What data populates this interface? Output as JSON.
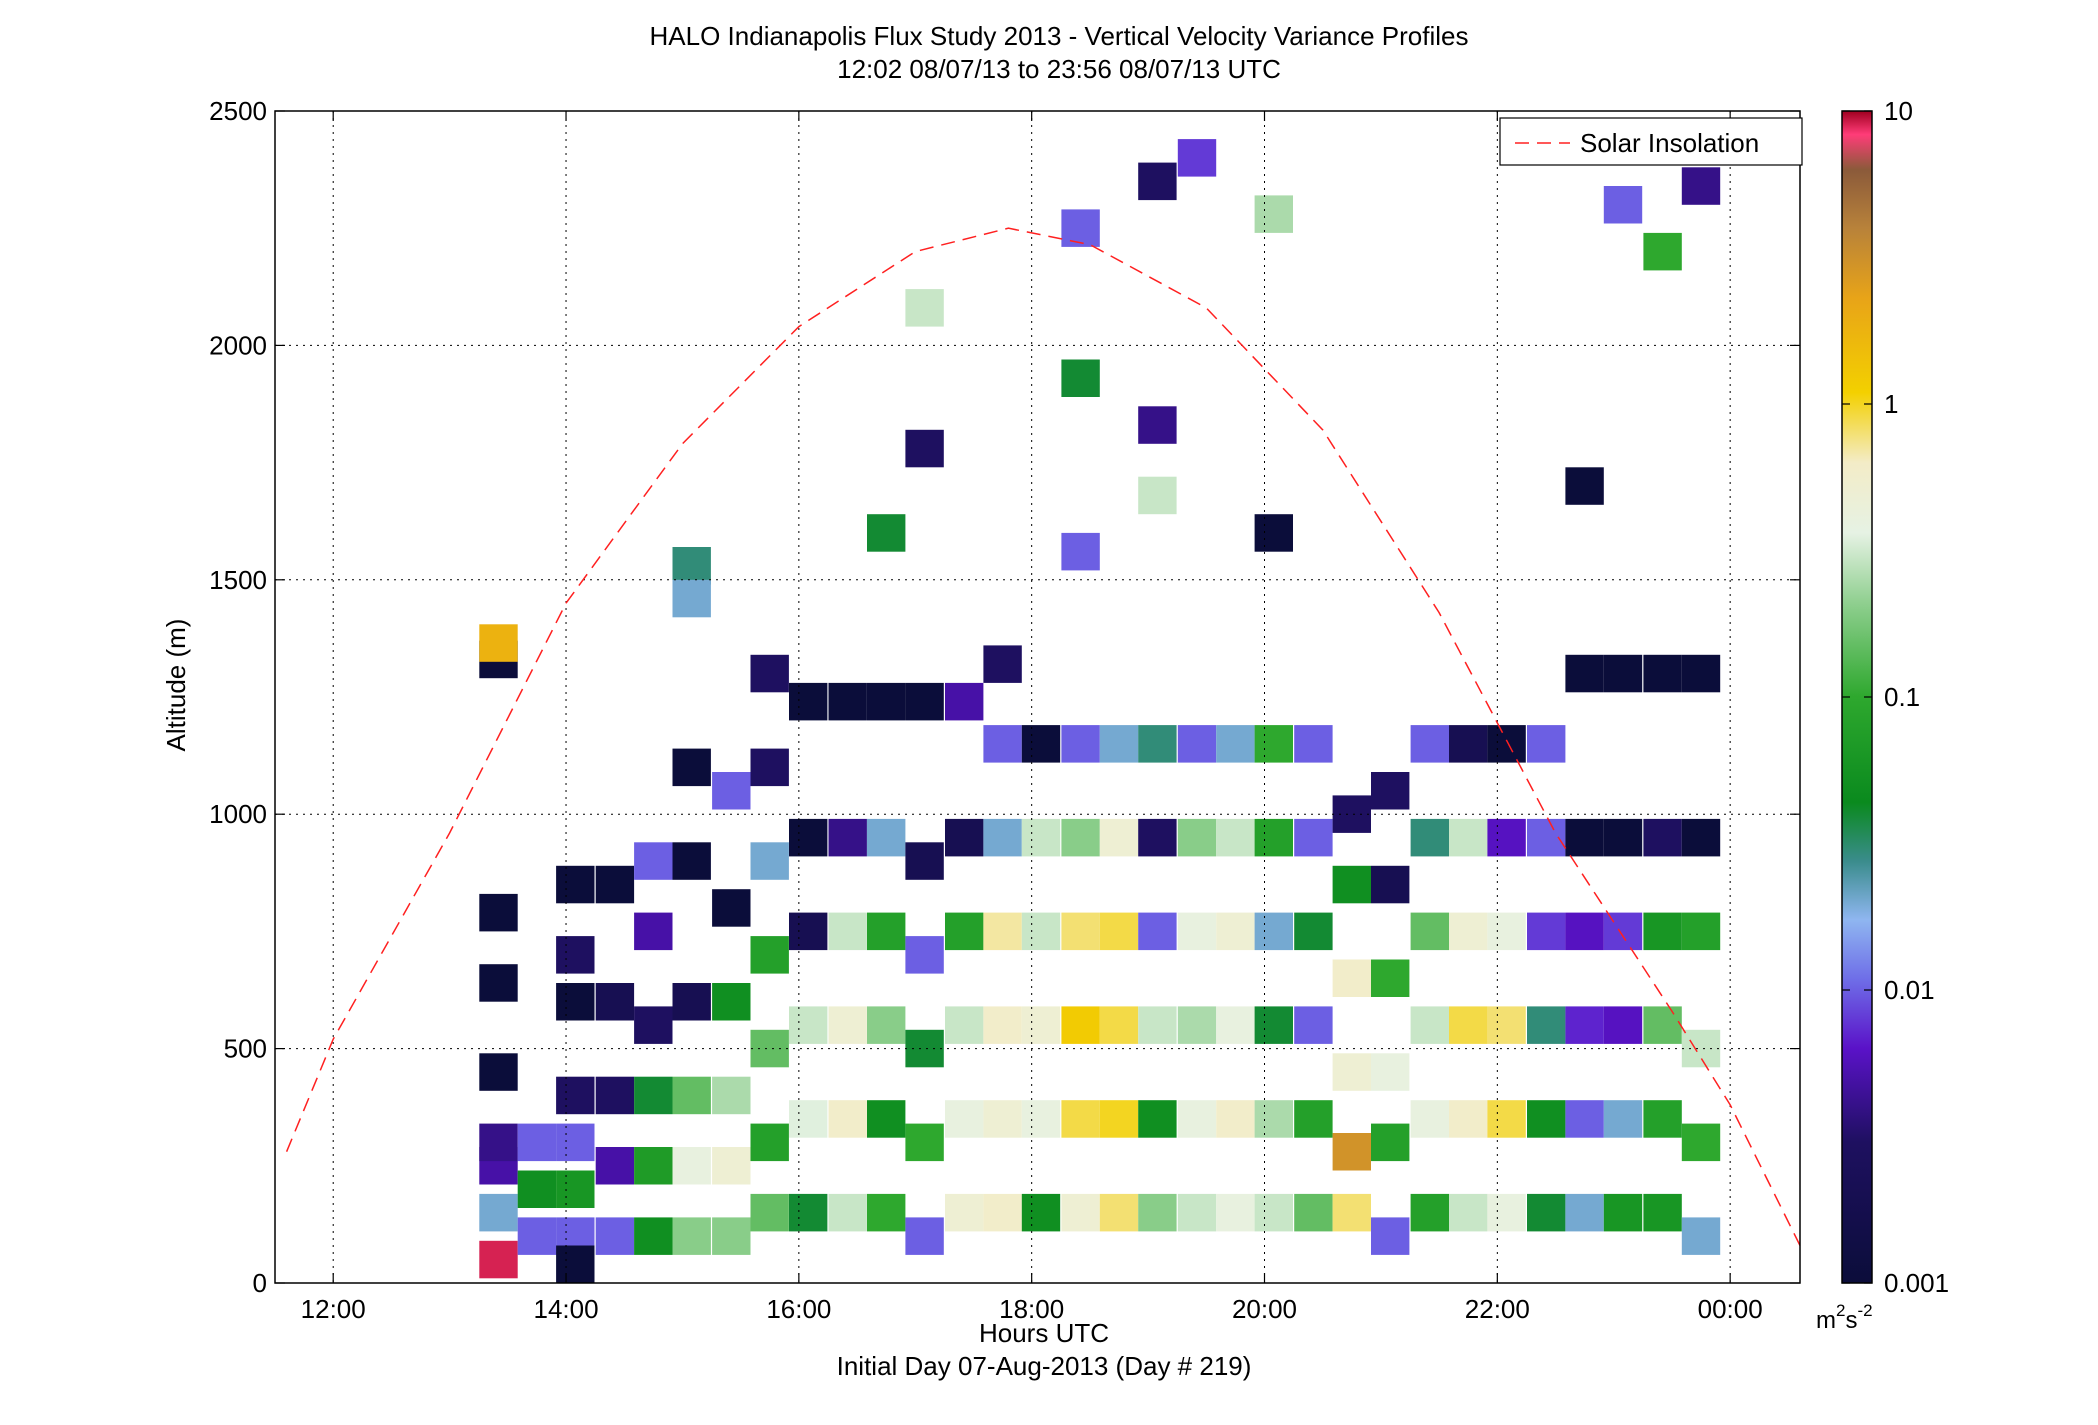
{
  "chart_data": {
    "type": "heatmap",
    "title": "HALO Indianapolis Flux Study 2013 - Vertical Velocity Variance Profiles",
    "subtitle": "12:02 08/07/13 to 23:56 08/07/13  UTC",
    "xlabel": "Hours UTC",
    "footer": "Initial Day 07-Aug-2013 (Day # 219)",
    "ylabel": "Altitude (m)",
    "xlim": [
      11.5,
      24.6
    ],
    "ylim": [
      0,
      2500
    ],
    "x_ticks": [
      12,
      14,
      16,
      18,
      20,
      22,
      24
    ],
    "x_tick_labels": [
      "12:00",
      "14:00",
      "16:00",
      "18:00",
      "20:00",
      "22:00",
      "00:00"
    ],
    "y_ticks": [
      0,
      500,
      1000,
      1500,
      2000,
      2500
    ],
    "y_tick_labels": [
      "0",
      "500",
      "1000",
      "1500",
      "2000",
      "2500"
    ],
    "grid": true,
    "legend": {
      "placement": "top-right",
      "entries": [
        "Solar Insolation"
      ]
    },
    "colorbar": {
      "scale": "log",
      "range": [
        0.001,
        10
      ],
      "ticks": [
        0.001,
        0.01,
        0.1,
        1,
        10
      ],
      "tick_labels": [
        "0.001",
        "0.01",
        "0.1",
        "1",
        "10"
      ],
      "units_base": "m",
      "units_sup": "2",
      "units_mid": "s",
      "units_sup2": "-2",
      "colormap": [
        [
          0.0,
          "#0b0d3a"
        ],
        [
          0.12,
          "#1e1060"
        ],
        [
          0.2,
          "#5a12c8"
        ],
        [
          0.26,
          "#6f6fe8"
        ],
        [
          0.31,
          "#8fb6f0"
        ],
        [
          0.36,
          "#3a8c8c"
        ],
        [
          0.41,
          "#0a8a1e"
        ],
        [
          0.5,
          "#2ea82e"
        ],
        [
          0.58,
          "#8fcf8f"
        ],
        [
          0.64,
          "#e6f2e4"
        ],
        [
          0.7,
          "#f3ecc7"
        ],
        [
          0.76,
          "#f3d000"
        ],
        [
          0.84,
          "#e8a418"
        ],
        [
          0.9,
          "#b8823a"
        ],
        [
          0.95,
          "#8b5a3a"
        ],
        [
          0.98,
          "#ff3c78"
        ],
        [
          1.0,
          "#a00020"
        ]
      ]
    },
    "solar_insolation": {
      "name": "Solar Insolation",
      "color": "#ff2020",
      "peak_hour": 17.8,
      "peak_altitude": 2250,
      "x": [
        11.6,
        12.0,
        13.0,
        14.0,
        15.0,
        16.0,
        17.0,
        17.8,
        18.5,
        19.5,
        20.5,
        21.5,
        22.5,
        23.5,
        24.0,
        24.6
      ],
      "y": [
        280,
        520,
        960,
        1450,
        1790,
        2040,
        2200,
        2250,
        2215,
        2080,
        1820,
        1430,
        960,
        580,
        380,
        80
      ]
    },
    "cells": [
      {
        "t": 13.42,
        "z": 50,
        "v": 9.0
      },
      {
        "t": 13.42,
        "z": 150,
        "v": 0.02
      },
      {
        "t": 13.42,
        "z": 250,
        "v": 0.005
      },
      {
        "t": 13.42,
        "z": 300,
        "v": 0.004
      },
      {
        "t": 13.42,
        "z": 450,
        "v": 0.001
      },
      {
        "t": 13.42,
        "z": 640,
        "v": 0.001
      },
      {
        "t": 13.42,
        "z": 790,
        "v": 0.001
      },
      {
        "t": 13.42,
        "z": 1330,
        "v": 0.001
      },
      {
        "t": 13.42,
        "z": 1365,
        "v": 1.8
      },
      {
        "t": 13.75,
        "z": 100,
        "v": 0.01
      },
      {
        "t": 13.75,
        "z": 200,
        "v": 0.05
      },
      {
        "t": 13.75,
        "z": 300,
        "v": 0.01
      },
      {
        "t": 14.08,
        "z": 100,
        "v": 0.01
      },
      {
        "t": 14.08,
        "z": 200,
        "v": 0.06
      },
      {
        "t": 14.08,
        "z": 300,
        "v": 0.01
      },
      {
        "t": 14.08,
        "z": 400,
        "v": 0.003
      },
      {
        "t": 14.08,
        "z": 600,
        "v": 0.001
      },
      {
        "t": 14.08,
        "z": 700,
        "v": 0.003
      },
      {
        "t": 14.08,
        "z": 850,
        "v": 0.001
      },
      {
        "t": 14.08,
        "z": 40,
        "v": 0.001
      },
      {
        "t": 14.42,
        "z": 100,
        "v": 0.01
      },
      {
        "t": 14.42,
        "z": 250,
        "v": 0.005
      },
      {
        "t": 14.42,
        "z": 400,
        "v": 0.003
      },
      {
        "t": 14.42,
        "z": 600,
        "v": 0.002
      },
      {
        "t": 14.42,
        "z": 850,
        "v": 0.001
      },
      {
        "t": 14.75,
        "z": 100,
        "v": 0.05
      },
      {
        "t": 14.75,
        "z": 250,
        "v": 0.07
      },
      {
        "t": 14.75,
        "z": 400,
        "v": 0.04
      },
      {
        "t": 14.75,
        "z": 550,
        "v": 0.003
      },
      {
        "t": 14.75,
        "z": 750,
        "v": 0.005
      },
      {
        "t": 14.75,
        "z": 900,
        "v": 0.01
      },
      {
        "t": 15.08,
        "z": 100,
        "v": 0.2
      },
      {
        "t": 15.08,
        "z": 250,
        "v": 0.4
      },
      {
        "t": 15.08,
        "z": 400,
        "v": 0.15
      },
      {
        "t": 15.08,
        "z": 600,
        "v": 0.002
      },
      {
        "t": 15.08,
        "z": 900,
        "v": 0.001
      },
      {
        "t": 15.08,
        "z": 1100,
        "v": 0.001
      },
      {
        "t": 15.08,
        "z": 1530,
        "v": 0.03
      },
      {
        "t": 15.08,
        "z": 1460,
        "v": 0.02
      },
      {
        "t": 15.42,
        "z": 100,
        "v": 0.2
      },
      {
        "t": 15.42,
        "z": 250,
        "v": 0.5
      },
      {
        "t": 15.42,
        "z": 400,
        "v": 0.25
      },
      {
        "t": 15.42,
        "z": 600,
        "v": 0.05
      },
      {
        "t": 15.42,
        "z": 800,
        "v": 0.001
      },
      {
        "t": 15.42,
        "z": 1050,
        "v": 0.01
      },
      {
        "t": 15.75,
        "z": 150,
        "v": 0.15
      },
      {
        "t": 15.75,
        "z": 300,
        "v": 0.08
      },
      {
        "t": 15.75,
        "z": 500,
        "v": 0.15
      },
      {
        "t": 15.75,
        "z": 700,
        "v": 0.08
      },
      {
        "t": 15.75,
        "z": 900,
        "v": 0.02
      },
      {
        "t": 15.75,
        "z": 1100,
        "v": 0.003
      },
      {
        "t": 15.75,
        "z": 1300,
        "v": 0.003
      },
      {
        "t": 16.08,
        "z": 150,
        "v": 0.04
      },
      {
        "t": 16.08,
        "z": 350,
        "v": 0.35
      },
      {
        "t": 16.08,
        "z": 550,
        "v": 0.3
      },
      {
        "t": 16.08,
        "z": 750,
        "v": 0.002
      },
      {
        "t": 16.08,
        "z": 950,
        "v": 0.001
      },
      {
        "t": 16.08,
        "z": 1240,
        "v": 0.001
      },
      {
        "t": 16.42,
        "z": 150,
        "v": 0.3
      },
      {
        "t": 16.42,
        "z": 350,
        "v": 0.6
      },
      {
        "t": 16.42,
        "z": 550,
        "v": 0.5
      },
      {
        "t": 16.42,
        "z": 750,
        "v": 0.3
      },
      {
        "t": 16.42,
        "z": 950,
        "v": 0.004
      },
      {
        "t": 16.42,
        "z": 1240,
        "v": 0.001
      },
      {
        "t": 16.75,
        "z": 150,
        "v": 0.1
      },
      {
        "t": 16.75,
        "z": 350,
        "v": 0.05
      },
      {
        "t": 16.75,
        "z": 550,
        "v": 0.2
      },
      {
        "t": 16.75,
        "z": 750,
        "v": 0.08
      },
      {
        "t": 16.75,
        "z": 950,
        "v": 0.02
      },
      {
        "t": 16.75,
        "z": 1240,
        "v": 0.001
      },
      {
        "t": 16.75,
        "z": 1600,
        "v": 0.04
      },
      {
        "t": 17.08,
        "z": 100,
        "v": 0.01
      },
      {
        "t": 17.08,
        "z": 300,
        "v": 0.1
      },
      {
        "t": 17.08,
        "z": 500,
        "v": 0.04
      },
      {
        "t": 17.08,
        "z": 700,
        "v": 0.01
      },
      {
        "t": 17.08,
        "z": 900,
        "v": 0.002
      },
      {
        "t": 17.08,
        "z": 1240,
        "v": 0.001
      },
      {
        "t": 17.08,
        "z": 1780,
        "v": 0.003
      },
      {
        "t": 17.08,
        "z": 2080,
        "v": 0.3
      },
      {
        "t": 17.42,
        "z": 150,
        "v": 0.5
      },
      {
        "t": 17.42,
        "z": 350,
        "v": 0.4
      },
      {
        "t": 17.42,
        "z": 550,
        "v": 0.3
      },
      {
        "t": 17.42,
        "z": 750,
        "v": 0.08
      },
      {
        "t": 17.42,
        "z": 950,
        "v": 0.002
      },
      {
        "t": 17.42,
        "z": 1240,
        "v": 0.005
      },
      {
        "t": 17.75,
        "z": 150,
        "v": 0.6
      },
      {
        "t": 17.75,
        "z": 350,
        "v": 0.5
      },
      {
        "t": 17.75,
        "z": 550,
        "v": 0.6
      },
      {
        "t": 17.75,
        "z": 750,
        "v": 0.7
      },
      {
        "t": 17.75,
        "z": 950,
        "v": 0.02
      },
      {
        "t": 17.75,
        "z": 1150,
        "v": 0.01
      },
      {
        "t": 17.75,
        "z": 1320,
        "v": 0.003
      },
      {
        "t": 18.08,
        "z": 150,
        "v": 0.05
      },
      {
        "t": 18.08,
        "z": 350,
        "v": 0.4
      },
      {
        "t": 18.08,
        "z": 550,
        "v": 0.5
      },
      {
        "t": 18.08,
        "z": 750,
        "v": 0.3
      },
      {
        "t": 18.08,
        "z": 950,
        "v": 0.3
      },
      {
        "t": 18.08,
        "z": 1150,
        "v": 0.001
      },
      {
        "t": 18.42,
        "z": 150,
        "v": 0.5
      },
      {
        "t": 18.42,
        "z": 350,
        "v": 0.9
      },
      {
        "t": 18.42,
        "z": 550,
        "v": 1.2
      },
      {
        "t": 18.42,
        "z": 750,
        "v": 0.8
      },
      {
        "t": 18.42,
        "z": 950,
        "v": 0.2
      },
      {
        "t": 18.42,
        "z": 1150,
        "v": 0.01
      },
      {
        "t": 18.42,
        "z": 1930,
        "v": 0.04
      },
      {
        "t": 18.42,
        "z": 2250,
        "v": 0.01
      },
      {
        "t": 18.42,
        "z": 1560,
        "v": 0.01
      },
      {
        "t": 18.75,
        "z": 150,
        "v": 0.8
      },
      {
        "t": 18.75,
        "z": 350,
        "v": 1.0
      },
      {
        "t": 18.75,
        "z": 550,
        "v": 0.9
      },
      {
        "t": 18.75,
        "z": 750,
        "v": 0.9
      },
      {
        "t": 18.75,
        "z": 950,
        "v": 0.5
      },
      {
        "t": 18.75,
        "z": 1150,
        "v": 0.02
      },
      {
        "t": 19.08,
        "z": 150,
        "v": 0.2
      },
      {
        "t": 19.08,
        "z": 350,
        "v": 0.05
      },
      {
        "t": 19.08,
        "z": 550,
        "v": 0.3
      },
      {
        "t": 19.08,
        "z": 750,
        "v": 0.01
      },
      {
        "t": 19.08,
        "z": 950,
        "v": 0.003
      },
      {
        "t": 19.08,
        "z": 1150,
        "v": 0.03
      },
      {
        "t": 19.08,
        "z": 1680,
        "v": 0.3
      },
      {
        "t": 19.08,
        "z": 1830,
        "v": 0.004
      },
      {
        "t": 19.08,
        "z": 2350,
        "v": 0.003
      },
      {
        "t": 19.42,
        "z": 150,
        "v": 0.3
      },
      {
        "t": 19.42,
        "z": 350,
        "v": 0.4
      },
      {
        "t": 19.42,
        "z": 550,
        "v": 0.25
      },
      {
        "t": 19.42,
        "z": 750,
        "v": 0.4
      },
      {
        "t": 19.42,
        "z": 950,
        "v": 0.2
      },
      {
        "t": 19.42,
        "z": 1150,
        "v": 0.01
      },
      {
        "t": 19.42,
        "z": 2400,
        "v": 0.008
      },
      {
        "t": 19.75,
        "z": 150,
        "v": 0.4
      },
      {
        "t": 19.75,
        "z": 350,
        "v": 0.6
      },
      {
        "t": 19.75,
        "z": 550,
        "v": 0.4
      },
      {
        "t": 19.75,
        "z": 750,
        "v": 0.5
      },
      {
        "t": 19.75,
        "z": 950,
        "v": 0.3
      },
      {
        "t": 19.75,
        "z": 1150,
        "v": 0.02
      },
      {
        "t": 20.08,
        "z": 150,
        "v": 0.3
      },
      {
        "t": 20.08,
        "z": 350,
        "v": 0.25
      },
      {
        "t": 20.08,
        "z": 550,
        "v": 0.04
      },
      {
        "t": 20.08,
        "z": 750,
        "v": 0.02
      },
      {
        "t": 20.08,
        "z": 950,
        "v": 0.08
      },
      {
        "t": 20.08,
        "z": 1150,
        "v": 0.1
      },
      {
        "t": 20.08,
        "z": 1600,
        "v": 0.001
      },
      {
        "t": 20.08,
        "z": 2280,
        "v": 0.25
      },
      {
        "t": 20.42,
        "z": 150,
        "v": 0.15
      },
      {
        "t": 20.42,
        "z": 350,
        "v": 0.08
      },
      {
        "t": 20.42,
        "z": 550,
        "v": 0.01
      },
      {
        "t": 20.42,
        "z": 750,
        "v": 0.04
      },
      {
        "t": 20.42,
        "z": 950,
        "v": 0.01
      },
      {
        "t": 20.42,
        "z": 1150,
        "v": 0.01
      },
      {
        "t": 20.75,
        "z": 150,
        "v": 0.8
      },
      {
        "t": 20.75,
        "z": 280,
        "v": 3.0
      },
      {
        "t": 20.75,
        "z": 450,
        "v": 0.5
      },
      {
        "t": 20.75,
        "z": 650,
        "v": 0.6
      },
      {
        "t": 20.75,
        "z": 850,
        "v": 0.05
      },
      {
        "t": 20.75,
        "z": 1000,
        "v": 0.003
      },
      {
        "t": 21.08,
        "z": 100,
        "v": 0.01
      },
      {
        "t": 21.08,
        "z": 300,
        "v": 0.08
      },
      {
        "t": 21.08,
        "z": 450,
        "v": 0.4
      },
      {
        "t": 21.08,
        "z": 650,
        "v": 0.1
      },
      {
        "t": 21.08,
        "z": 850,
        "v": 0.002
      },
      {
        "t": 21.08,
        "z": 1050,
        "v": 0.003
      },
      {
        "t": 21.42,
        "z": 150,
        "v": 0.08
      },
      {
        "t": 21.42,
        "z": 350,
        "v": 0.4
      },
      {
        "t": 21.42,
        "z": 550,
        "v": 0.3
      },
      {
        "t": 21.42,
        "z": 750,
        "v": 0.15
      },
      {
        "t": 21.42,
        "z": 950,
        "v": 0.03
      },
      {
        "t": 21.42,
        "z": 1150,
        "v": 0.01
      },
      {
        "t": 21.75,
        "z": 150,
        "v": 0.3
      },
      {
        "t": 21.75,
        "z": 350,
        "v": 0.6
      },
      {
        "t": 21.75,
        "z": 550,
        "v": 0.9
      },
      {
        "t": 21.75,
        "z": 750,
        "v": 0.5
      },
      {
        "t": 21.75,
        "z": 950,
        "v": 0.3
      },
      {
        "t": 21.75,
        "z": 1150,
        "v": 0.002
      },
      {
        "t": 22.08,
        "z": 150,
        "v": 0.4
      },
      {
        "t": 22.08,
        "z": 350,
        "v": 0.9
      },
      {
        "t": 22.08,
        "z": 550,
        "v": 0.8
      },
      {
        "t": 22.08,
        "z": 750,
        "v": 0.4
      },
      {
        "t": 22.08,
        "z": 950,
        "v": 0.006
      },
      {
        "t": 22.08,
        "z": 1150,
        "v": 0.001
      },
      {
        "t": 22.42,
        "z": 150,
        "v": 0.04
      },
      {
        "t": 22.42,
        "z": 350,
        "v": 0.05
      },
      {
        "t": 22.42,
        "z": 550,
        "v": 0.03
      },
      {
        "t": 22.42,
        "z": 750,
        "v": 0.008
      },
      {
        "t": 22.42,
        "z": 950,
        "v": 0.01
      },
      {
        "t": 22.42,
        "z": 1150,
        "v": 0.01
      },
      {
        "t": 22.75,
        "z": 150,
        "v": 0.02
      },
      {
        "t": 22.75,
        "z": 350,
        "v": 0.01
      },
      {
        "t": 22.75,
        "z": 550,
        "v": 0.007
      },
      {
        "t": 22.75,
        "z": 750,
        "v": 0.006
      },
      {
        "t": 22.75,
        "z": 950,
        "v": 0.001
      },
      {
        "t": 22.75,
        "z": 1300,
        "v": 0.001
      },
      {
        "t": 22.75,
        "z": 1700,
        "v": 0.001
      },
      {
        "t": 23.08,
        "z": 150,
        "v": 0.06
      },
      {
        "t": 23.08,
        "z": 350,
        "v": 0.02
      },
      {
        "t": 23.08,
        "z": 550,
        "v": 0.006
      },
      {
        "t": 23.08,
        "z": 750,
        "v": 0.008
      },
      {
        "t": 23.08,
        "z": 950,
        "v": 0.001
      },
      {
        "t": 23.08,
        "z": 1300,
        "v": 0.001
      },
      {
        "t": 23.08,
        "z": 2300,
        "v": 0.01
      },
      {
        "t": 23.42,
        "z": 150,
        "v": 0.06
      },
      {
        "t": 23.42,
        "z": 350,
        "v": 0.08
      },
      {
        "t": 23.42,
        "z": 550,
        "v": 0.15
      },
      {
        "t": 23.42,
        "z": 750,
        "v": 0.06
      },
      {
        "t": 23.42,
        "z": 950,
        "v": 0.003
      },
      {
        "t": 23.42,
        "z": 1300,
        "v": 0.001
      },
      {
        "t": 23.42,
        "z": 2200,
        "v": 0.1
      },
      {
        "t": 23.75,
        "z": 100,
        "v": 0.02
      },
      {
        "t": 23.75,
        "z": 300,
        "v": 0.1
      },
      {
        "t": 23.75,
        "z": 500,
        "v": 0.3
      },
      {
        "t": 23.75,
        "z": 750,
        "v": 0.08
      },
      {
        "t": 23.75,
        "z": 950,
        "v": 0.001
      },
      {
        "t": 23.75,
        "z": 1300,
        "v": 0.001
      },
      {
        "t": 23.75,
        "z": 2340,
        "v": 0.004
      }
    ]
  }
}
